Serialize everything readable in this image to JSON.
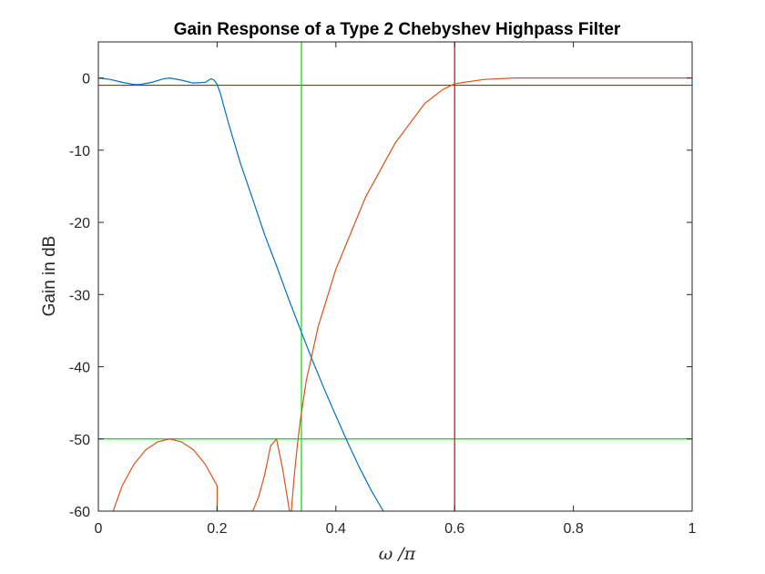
{
  "chart_data": {
    "type": "line",
    "title": "Gain Response of a Type 2 Chebyshev Highpass Filter",
    "xlabel": "ω /π",
    "ylabel": "Gain in dB",
    "xlim": [
      0,
      1
    ],
    "ylim": [
      -60,
      5
    ],
    "xticks": [
      0,
      0.2,
      0.4,
      0.6,
      0.8,
      1
    ],
    "xtick_labels": [
      "0",
      "0.2",
      "0.4",
      "0.6",
      "0.8",
      "1"
    ],
    "yticks": [
      0,
      -10,
      -20,
      -30,
      -40,
      -50,
      -60
    ],
    "ytick_labels": [
      "0",
      "-10",
      "-20",
      "-30",
      "-40",
      "-50",
      "-60"
    ],
    "grid": false,
    "series": [
      {
        "color": "#0072BD",
        "x": [
          0,
          0.02,
          0.04,
          0.06,
          0.07,
          0.09,
          0.11,
          0.12,
          0.14,
          0.16,
          0.18,
          0.19,
          0.195,
          0.2,
          0.205,
          0.21,
          0.22,
          0.24,
          0.26,
          0.28,
          0.3,
          0.32,
          0.34,
          0.36,
          0.38,
          0.4,
          0.42,
          0.44,
          0.46,
          0.48
        ],
        "y": [
          0,
          -0.2,
          -0.6,
          -0.9,
          -0.9,
          -0.6,
          -0.1,
          0,
          -0.3,
          -0.7,
          -0.6,
          -0.1,
          -0.3,
          -0.9,
          -2,
          -3.5,
          -6.5,
          -12,
          -16.8,
          -21.7,
          -26,
          -30.5,
          -34.8,
          -39,
          -43,
          -46.8,
          -50.5,
          -54,
          -57.2,
          -60
        ]
      },
      {
        "color": "#D95319",
        "x": [
          0.025,
          0.04,
          0.06,
          0.08,
          0.1,
          0.12,
          0.14,
          0.16,
          0.18,
          0.2,
          0.2,
          0.21,
          0.2,
          0.26,
          0.27,
          0.28,
          0.29,
          0.3,
          0.31,
          0.32,
          0.322,
          0.325,
          0.33,
          0.335,
          0.34,
          0.35,
          0.37,
          0.4,
          0.45,
          0.5,
          0.55,
          0.58,
          0.6,
          0.65,
          0.7,
          0.8,
          1
        ],
        "y": [
          -60,
          -56.5,
          -53.5,
          -51.5,
          -50.4,
          -50,
          -50.4,
          -51.5,
          -53.5,
          -56.5,
          -60,
          -60,
          -60,
          -60,
          -58,
          -55,
          -51,
          -50,
          -54,
          -59,
          -60,
          -60,
          -55,
          -51,
          -47.5,
          -42,
          -34.5,
          -26.5,
          -16.5,
          -9,
          -3.5,
          -1.6,
          -0.8,
          -0.2,
          0,
          0,
          0
        ]
      }
    ],
    "reference_lines": [
      {
        "orientation": "horizontal",
        "value": -1,
        "color": "#B22222"
      },
      {
        "orientation": "horizontal",
        "value": -50,
        "color": "#00DD00"
      },
      {
        "orientation": "vertical",
        "value": 0.6,
        "color": "#DD0000"
      },
      {
        "orientation": "vertical",
        "value": 0.342,
        "color": "#00DD00"
      }
    ]
  }
}
